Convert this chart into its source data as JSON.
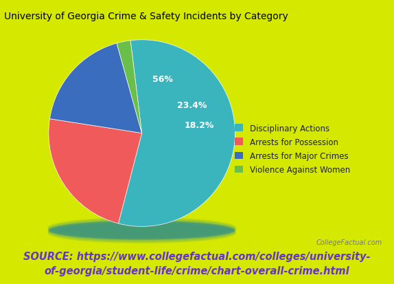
{
  "title": "University of Georgia Crime & Safety Incidents by Category",
  "slices": [
    56.0,
    23.4,
    18.2,
    2.4
  ],
  "labels": [
    "Disciplinary Actions",
    "Arrests for Possession",
    "Arrests for Major Crimes",
    "Violence Against Women"
  ],
  "colors": [
    "#3ab5be",
    "#f05a5a",
    "#3b6dbf",
    "#6abf4b"
  ],
  "shadow_color": "#2a8a90",
  "background_color": "#d4e800",
  "legend_labels": [
    "Disciplinary Actions",
    "Arrests for Possession",
    "Arrests for Major Crimes",
    "Violence Against Women"
  ],
  "source_text": "SOURCE: https://www.collegefactual.com/colleges/university-\nof-georgia/student-life/crime/chart-overall-crime.html",
  "watermark": "CollegeFactual.com",
  "startangle": 97,
  "title_fontsize": 10,
  "legend_fontsize": 9,
  "pct_labels": [
    {
      "val": 56.0,
      "text": "56%",
      "color": "white"
    },
    {
      "val": 23.4,
      "text": "23.4%",
      "color": "white"
    },
    {
      "val": 18.2,
      "text": "18.2%",
      "color": "white"
    },
    {
      "val": 2.4,
      "text": "",
      "color": "white"
    }
  ]
}
